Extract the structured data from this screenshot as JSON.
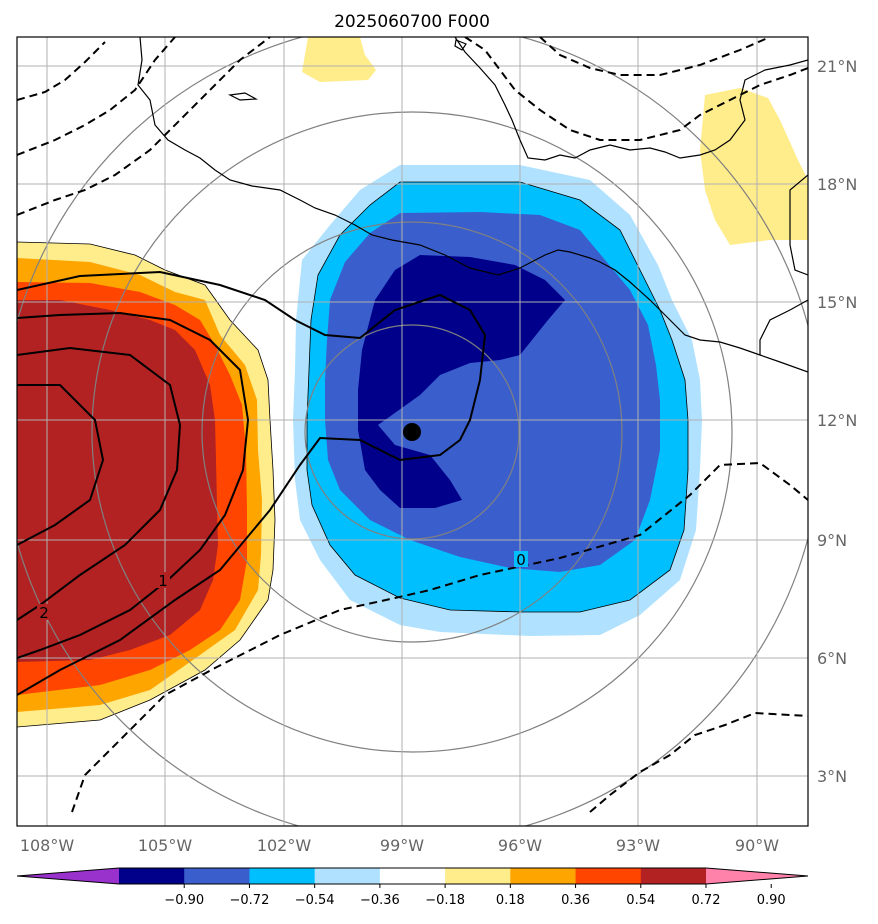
{
  "title": "2025060700 F000",
  "lon_ticks": [
    "108°W",
    "105°W",
    "102°W",
    "99°W",
    "96°W",
    "93°W",
    "90°W"
  ],
  "lat_ticks": [
    "21°N",
    "18°N",
    "15°N",
    "12°N",
    "9°N",
    "6°N",
    "3°N"
  ],
  "contour_labels": [
    "0",
    "1",
    "2"
  ],
  "colorbar": {
    "ticks": [
      "−0.90",
      "−0.72",
      "−0.54",
      "−0.36",
      "−0.18",
      "0.18",
      "0.36",
      "0.54",
      "0.72",
      "0.90"
    ],
    "colors": [
      "#9932cc",
      "#00008b",
      "#3a5fcd",
      "#00bfff",
      "#b0e2ff",
      "#ffffff",
      "#ffec8b",
      "#ffa500",
      "#ff4500",
      "#b22222",
      "#ff82ab"
    ]
  },
  "center_marker": {
    "lon": -98.8,
    "lat": 11.7
  }
}
